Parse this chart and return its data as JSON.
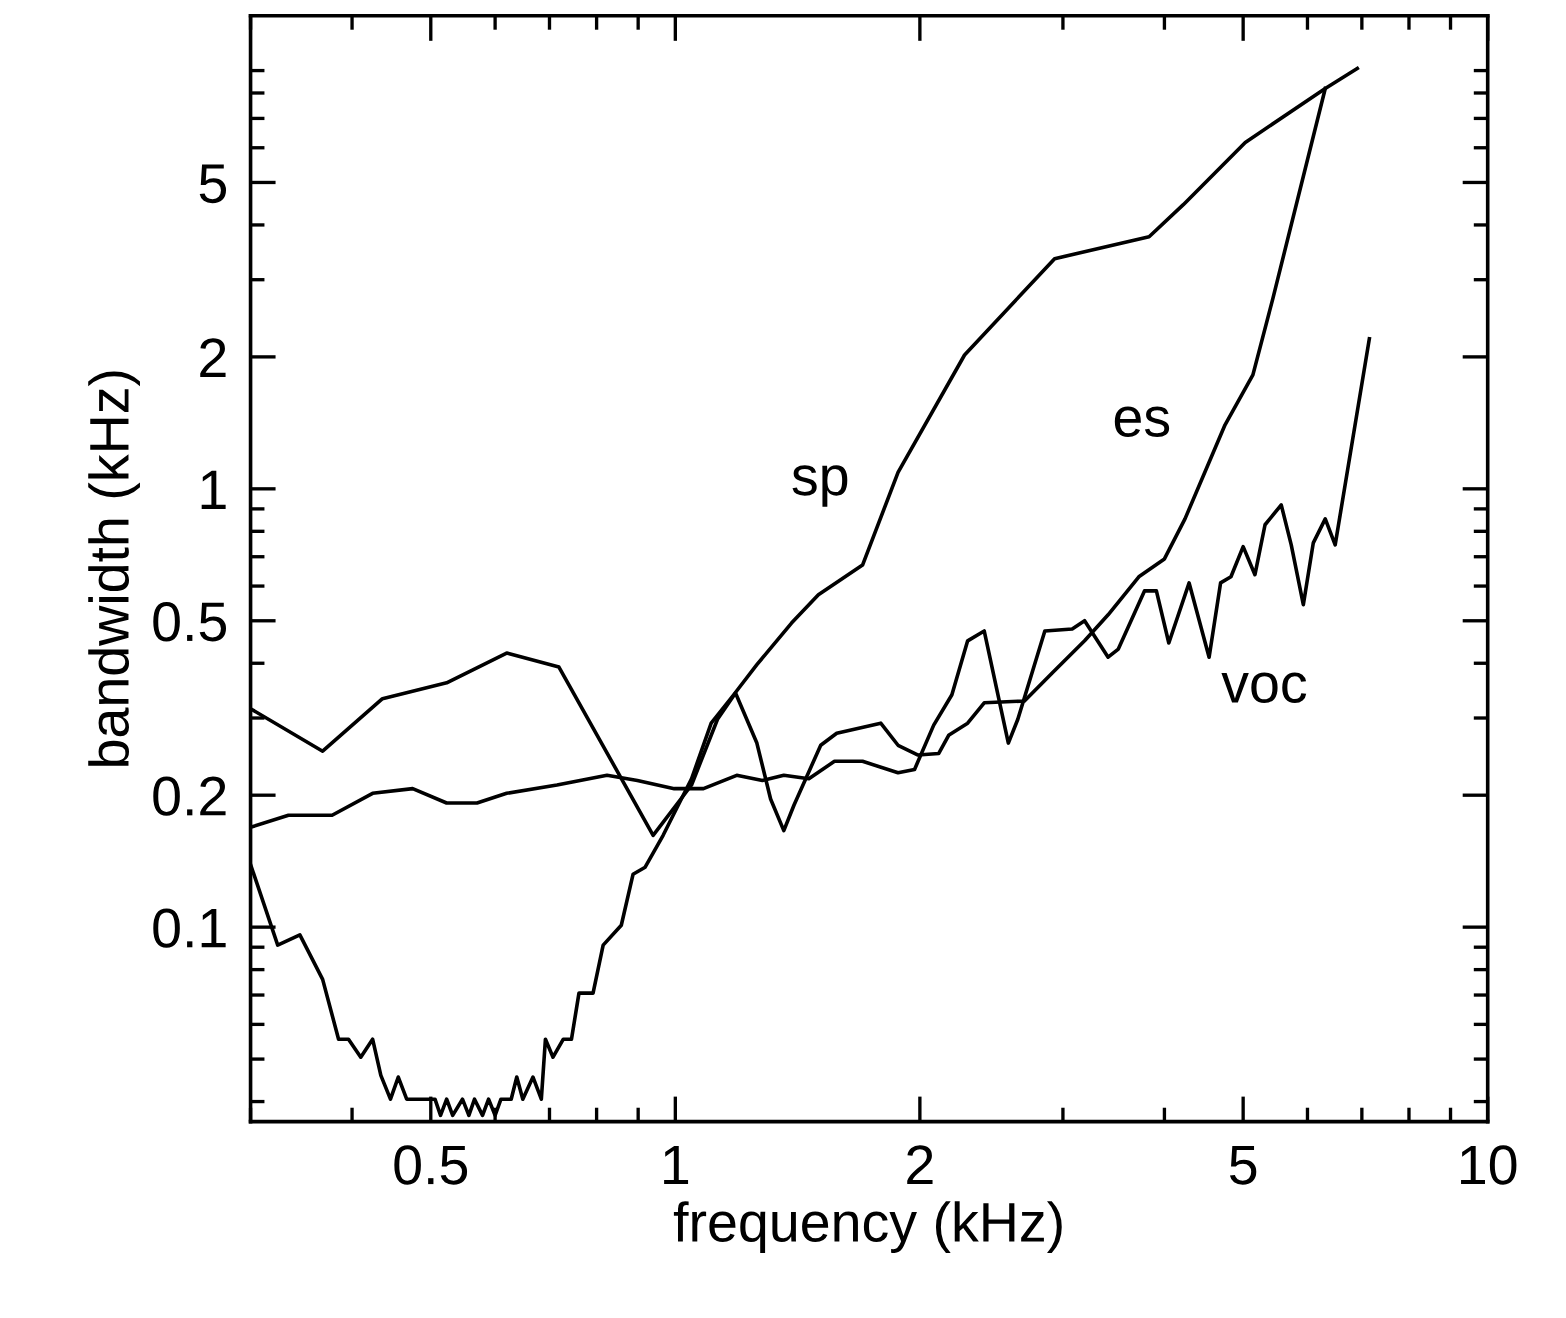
{
  "chart_data": {
    "type": "line",
    "xlabel": "frequency (kHz)",
    "ylabel": "bandwidth (kHz)",
    "log": "xy",
    "xlim": [
      0.3,
      10
    ],
    "ylim": [
      0.036,
      12
    ],
    "xticks": [
      0.5,
      1,
      2,
      5,
      10
    ],
    "yticks": [
      0.1,
      0.2,
      0.5,
      1,
      2,
      5
    ],
    "grid": false,
    "legend": false,
    "marker": "none",
    "line_style": "solid",
    "series": [
      {
        "name": "sp",
        "color": "#000000",
        "x": [
          0.3,
          0.324,
          0.345,
          0.368,
          0.385,
          0.396,
          0.41,
          0.424,
          0.434,
          0.446,
          0.456,
          0.467,
          0.506,
          0.514,
          0.523,
          0.532,
          0.547,
          0.557,
          0.566,
          0.579,
          0.589,
          0.6,
          0.61,
          0.628,
          0.638,
          0.649,
          0.668,
          0.684,
          0.692,
          0.707,
          0.728,
          0.745,
          0.761,
          0.792,
          0.815,
          0.858,
          0.887,
          0.918,
          0.966,
          1.047,
          1.107,
          1.18,
          1.26,
          1.39,
          1.5,
          1.7,
          1.88,
          2.27,
          2.93,
          3.83,
          4.22,
          5.03,
          6.31,
          6.91
        ],
        "values": [
          0.139,
          0.091,
          0.096,
          0.076,
          0.0555,
          0.0555,
          0.0505,
          0.0555,
          0.0459,
          0.0405,
          0.0455,
          0.0405,
          0.0405,
          0.0372,
          0.0405,
          0.0372,
          0.0405,
          0.0372,
          0.0405,
          0.0372,
          0.0405,
          0.0372,
          0.0405,
          0.0405,
          0.0455,
          0.0405,
          0.0455,
          0.0405,
          0.0555,
          0.0505,
          0.0555,
          0.0555,
          0.0707,
          0.0707,
          0.091,
          0.101,
          0.132,
          0.137,
          0.162,
          0.218,
          0.292,
          0.339,
          0.397,
          0.494,
          0.573,
          0.67,
          1.09,
          2.02,
          3.35,
          3.76,
          4.45,
          6.17,
          8.19,
          9.1
        ]
      },
      {
        "name": "es",
        "color": "#000000",
        "x": [
          0.3,
          0.368,
          0.436,
          0.523,
          0.62,
          0.719,
          0.939,
          1.047,
          1.127,
          1.186,
          1.26,
          1.31,
          1.36,
          1.4,
          1.51,
          1.58,
          1.79,
          1.88,
          1.99,
          2.11,
          2.17,
          2.29,
          2.4,
          2.69,
          2.91,
          3.19,
          3.41,
          3.72,
          4.0,
          4.24,
          4.75,
          5.14,
          5.44,
          6.31
        ],
        "values": [
          0.315,
          0.252,
          0.332,
          0.361,
          0.422,
          0.392,
          0.162,
          0.211,
          0.298,
          0.342,
          0.263,
          0.196,
          0.166,
          0.19,
          0.26,
          0.277,
          0.292,
          0.26,
          0.247,
          0.249,
          0.274,
          0.292,
          0.325,
          0.328,
          0.38,
          0.45,
          0.516,
          0.63,
          0.692,
          0.854,
          1.4,
          1.82,
          2.72,
          8.19
        ]
      },
      {
        "name": "voc",
        "color": "#000000",
        "x": [
          0.3,
          0.334,
          0.378,
          0.424,
          0.475,
          0.523,
          0.57,
          0.62,
          0.715,
          0.824,
          0.898,
          0.997,
          1.083,
          1.19,
          1.28,
          1.36,
          1.46,
          1.57,
          1.7,
          1.88,
          1.97,
          2.08,
          2.19,
          2.29,
          2.4,
          2.57,
          2.64,
          2.85,
          3.08,
          3.19,
          3.41,
          3.51,
          3.78,
          3.91,
          4.05,
          4.29,
          4.54,
          4.69,
          4.83,
          5.0,
          5.17,
          5.32,
          5.57,
          5.73,
          5.93,
          6.1,
          6.31,
          6.49,
          7.15
        ],
        "values": [
          0.169,
          0.18,
          0.18,
          0.202,
          0.207,
          0.192,
          0.192,
          0.202,
          0.211,
          0.222,
          0.216,
          0.207,
          0.207,
          0.222,
          0.216,
          0.222,
          0.218,
          0.239,
          0.239,
          0.225,
          0.229,
          0.289,
          0.339,
          0.45,
          0.474,
          0.263,
          0.298,
          0.474,
          0.479,
          0.5,
          0.413,
          0.431,
          0.585,
          0.585,
          0.445,
          0.61,
          0.413,
          0.61,
          0.63,
          0.738,
          0.637,
          0.828,
          0.919,
          0.745,
          0.544,
          0.753,
          0.854,
          0.745,
          2.2
        ]
      }
    ]
  }
}
